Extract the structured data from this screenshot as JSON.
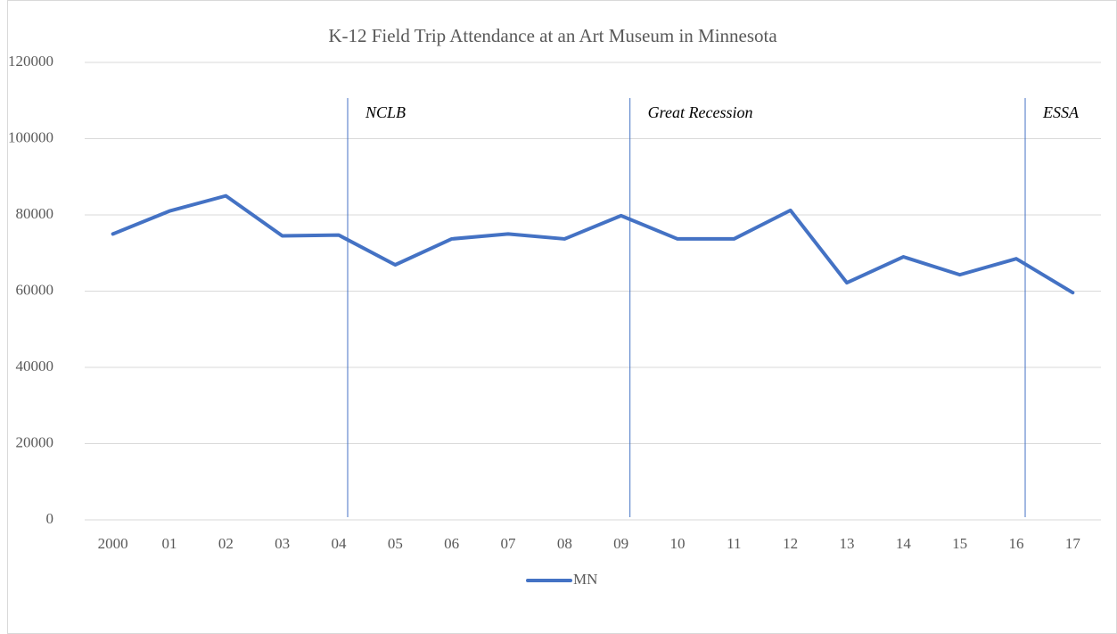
{
  "chart_data": {
    "type": "line",
    "title": "K-12 Field Trip Attendance at an Art Museum in Minnesota",
    "categories": [
      "2000",
      "01",
      "02",
      "03",
      "04",
      "05",
      "06",
      "07",
      "08",
      "09",
      "10",
      "11",
      "12",
      "13",
      "14",
      "15",
      "16",
      "17"
    ],
    "series": [
      {
        "name": "MN",
        "color": "#4472c4",
        "values": [
          75000,
          81000,
          85000,
          74500,
          74700,
          66900,
          73700,
          75000,
          73700,
          79800,
          73700,
          73700,
          81200,
          62200,
          69000,
          64300,
          68500,
          59600
        ]
      }
    ],
    "ylim": [
      0,
      120000
    ],
    "yticks": [
      0,
      20000,
      40000,
      60000,
      80000,
      100000,
      120000
    ],
    "grid": true,
    "legend": "bottom",
    "annotations": [
      {
        "text": "NCLB",
        "x": "04"
      },
      {
        "text": "Great Recession",
        "x": "09"
      },
      {
        "text": "ESSA",
        "x": "16"
      }
    ]
  }
}
